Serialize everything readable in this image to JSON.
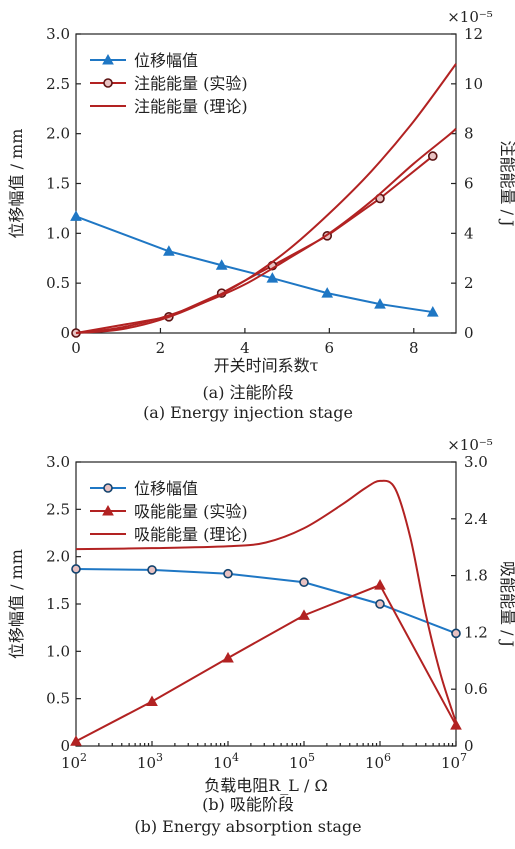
{
  "chart_data": [
    {
      "type": "line",
      "x_scale": "linear",
      "xlim": [
        0,
        9
      ],
      "x_ticks": [
        "0",
        "2",
        "4",
        "6",
        "8"
      ],
      "xlabel": "开关时间系数τ",
      "ylim_left": [
        0,
        3.0
      ],
      "y_ticks_left": [
        "0",
        "0.5",
        "1.0",
        "1.5",
        "2.0",
        "2.5",
        "3.0"
      ],
      "ylabel_left": "位移幅值 / mm",
      "ylim_right": [
        0,
        12
      ],
      "y_ticks_right": [
        "0",
        "2",
        "4",
        "6",
        "8",
        "10",
        "12"
      ],
      "ylabel_right": "注能能量 / J",
      "right_multiplier": "×10⁻⁵",
      "legend_position": "top-left",
      "caption_cn": "(a) 注能阶段",
      "caption_en": "(a) Energy injection stage",
      "series": [
        {
          "name": "位移幅值",
          "axis": "left",
          "color": "#1f77c4",
          "marker": "triangle",
          "x": [
            0,
            2.2,
            3.45,
            4.65,
            5.95,
            7.2,
            8.45
          ],
          "y": [
            1.17,
            0.82,
            0.68,
            0.55,
            0.4,
            0.29,
            0.21
          ]
        },
        {
          "name": "注能能量 (实验)",
          "axis": "right",
          "color": "#b22222",
          "marker": "circle",
          "x": [
            0,
            2.2,
            3.45,
            4.65,
            5.95,
            7.2,
            8.45
          ],
          "y": [
            0,
            0.65,
            1.6,
            2.7,
            3.9,
            5.4,
            7.1
          ]
        },
        {
          "name": "注能能量 (理论)",
          "axis": "right",
          "color": "#b22222",
          "marker": "none",
          "x": [
            0,
            1,
            2,
            3,
            4,
            5,
            6,
            7,
            8,
            9
          ],
          "y": [
            0,
            0.13,
            0.53,
            1.2,
            2.1,
            3.3,
            4.8,
            6.5,
            8.5,
            10.8
          ]
        },
        {
          "name": "",
          "axis": "right",
          "color": "#b22222",
          "marker": "none",
          "x": [
            0,
            1,
            2,
            3,
            4,
            5,
            6,
            7,
            8,
            8.8,
            9
          ],
          "y": [
            0,
            0.2,
            0.6,
            1.2,
            1.95,
            2.95,
            4.0,
            5.3,
            6.8,
            7.9,
            8.2
          ]
        }
      ]
    },
    {
      "type": "line",
      "x_scale": "log",
      "xlim": [
        100,
        10000000
      ],
      "x_ticks": [
        {
          "base": "10",
          "exp": "2"
        },
        {
          "base": "10",
          "exp": "3"
        },
        {
          "base": "10",
          "exp": "4"
        },
        {
          "base": "10",
          "exp": "5"
        },
        {
          "base": "10",
          "exp": "6"
        },
        {
          "base": "10",
          "exp": "7"
        }
      ],
      "xlabel": "负载电阻R_L / Ω",
      "ylim_left": [
        0,
        3.0
      ],
      "y_ticks_left": [
        "0",
        "0.5",
        "1.0",
        "1.5",
        "2.0",
        "2.5",
        "3.0"
      ],
      "ylabel_left": "位移幅值 / mm",
      "ylim_right": [
        0,
        3.0
      ],
      "y_ticks_right": [
        "0",
        "0.6",
        "1.2",
        "1.8",
        "2.4",
        "3.0"
      ],
      "ylabel_right": "吸能能量 / J",
      "right_multiplier": "×10⁻⁵",
      "legend_position": "top-left",
      "caption_cn": "(b) 吸能阶段",
      "caption_en": "(b) Energy absorption stage",
      "series": [
        {
          "name": "位移幅值",
          "axis": "left",
          "color": "#1f77c4",
          "marker": "circle",
          "x": [
            100,
            1000,
            10000,
            100000,
            1000000,
            10000000
          ],
          "y": [
            1.87,
            1.86,
            1.82,
            1.73,
            1.5,
            1.19
          ]
        },
        {
          "name": "吸能能量 (实验)",
          "axis": "right",
          "color": "#b22222",
          "marker": "triangle",
          "x": [
            100,
            1000,
            10000,
            100000,
            1000000,
            10000000
          ],
          "y": [
            0.05,
            0.47,
            0.93,
            1.38,
            1.7,
            0.22
          ]
        },
        {
          "name": "吸能能量 (理论)",
          "axis": "right",
          "color": "#b22222",
          "marker": "none",
          "x": [
            100,
            1000,
            10000,
            31600,
            100000,
            316000,
            630000,
            1000000,
            1580000,
            2510000,
            3980000,
            6310000,
            10000000
          ],
          "y": [
            2.08,
            2.09,
            2.11,
            2.15,
            2.3,
            2.55,
            2.72,
            2.8,
            2.72,
            2.2,
            1.4,
            0.75,
            0.25
          ]
        }
      ]
    }
  ]
}
